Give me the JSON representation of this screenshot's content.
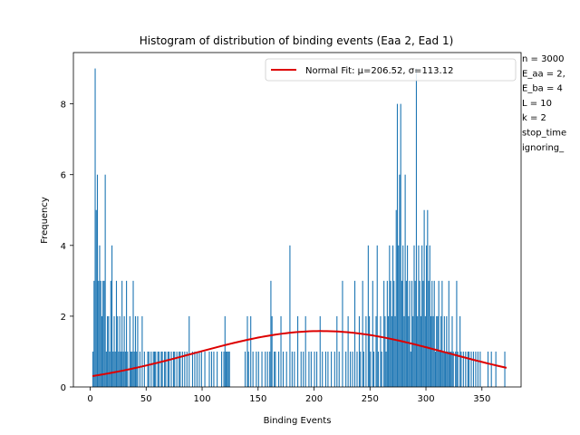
{
  "chart_data": {
    "type": "bar",
    "title": "Histogram of distribution of binding events (Eaa 2, Ead 1)",
    "xlabel": "Binding Events",
    "ylabel": "Frequency",
    "xlim": [
      -15,
      385
    ],
    "ylim": [
      0,
      9.45
    ],
    "xticks": [
      0,
      50,
      100,
      150,
      200,
      250,
      300,
      350
    ],
    "yticks": [
      0,
      2,
      4,
      6,
      8
    ],
    "bar_color": "#1f77b4",
    "bin_width": 1,
    "bins": [
      [
        2,
        1
      ],
      [
        3,
        3
      ],
      [
        4,
        9
      ],
      [
        5,
        5
      ],
      [
        6,
        6
      ],
      [
        7,
        3
      ],
      [
        8,
        4
      ],
      [
        9,
        3
      ],
      [
        10,
        2
      ],
      [
        11,
        3
      ],
      [
        12,
        3
      ],
      [
        13,
        6
      ],
      [
        14,
        1
      ],
      [
        15,
        2
      ],
      [
        16,
        2
      ],
      [
        17,
        1
      ],
      [
        18,
        3
      ],
      [
        19,
        4
      ],
      [
        20,
        1
      ],
      [
        21,
        2
      ],
      [
        22,
        1
      ],
      [
        23,
        3
      ],
      [
        24,
        2
      ],
      [
        25,
        1
      ],
      [
        26,
        2
      ],
      [
        27,
        1
      ],
      [
        28,
        3
      ],
      [
        29,
        1
      ],
      [
        30,
        2
      ],
      [
        31,
        1
      ],
      [
        32,
        3
      ],
      [
        33,
        1
      ],
      [
        35,
        2
      ],
      [
        36,
        1
      ],
      [
        37,
        1
      ],
      [
        38,
        3
      ],
      [
        39,
        1
      ],
      [
        40,
        2
      ],
      [
        41,
        1
      ],
      [
        42,
        2
      ],
      [
        44,
        1
      ],
      [
        46,
        2
      ],
      [
        48,
        1
      ],
      [
        51,
        1
      ],
      [
        52,
        1
      ],
      [
        54,
        1
      ],
      [
        56,
        1
      ],
      [
        57,
        1
      ],
      [
        58,
        1
      ],
      [
        60,
        1
      ],
      [
        61,
        1
      ],
      [
        63,
        1
      ],
      [
        64,
        1
      ],
      [
        66,
        1
      ],
      [
        67,
        1
      ],
      [
        69,
        1
      ],
      [
        70,
        1
      ],
      [
        72,
        1
      ],
      [
        74,
        1
      ],
      [
        75,
        1
      ],
      [
        77,
        1
      ],
      [
        79,
        1
      ],
      [
        80,
        1
      ],
      [
        82,
        1
      ],
      [
        84,
        1
      ],
      [
        86,
        1
      ],
      [
        88,
        2
      ],
      [
        91,
        1
      ],
      [
        93,
        1
      ],
      [
        95,
        1
      ],
      [
        97,
        1
      ],
      [
        99,
        1
      ],
      [
        102,
        1
      ],
      [
        106,
        1
      ],
      [
        108,
        1
      ],
      [
        110,
        1
      ],
      [
        113,
        1
      ],
      [
        117,
        1
      ],
      [
        119,
        1
      ],
      [
        120,
        2
      ],
      [
        121,
        1
      ],
      [
        122,
        1
      ],
      [
        123,
        1
      ],
      [
        124,
        1
      ],
      [
        138,
        1
      ],
      [
        140,
        2
      ],
      [
        141,
        1
      ],
      [
        143,
        2
      ],
      [
        145,
        1
      ],
      [
        148,
        1
      ],
      [
        150,
        1
      ],
      [
        153,
        1
      ],
      [
        156,
        1
      ],
      [
        158,
        1
      ],
      [
        160,
        1
      ],
      [
        161,
        3
      ],
      [
        162,
        2
      ],
      [
        164,
        1
      ],
      [
        165,
        1
      ],
      [
        168,
        1
      ],
      [
        170,
        2
      ],
      [
        172,
        1
      ],
      [
        175,
        1
      ],
      [
        178,
        4
      ],
      [
        180,
        1
      ],
      [
        182,
        1
      ],
      [
        185,
        2
      ],
      [
        188,
        1
      ],
      [
        190,
        1
      ],
      [
        192,
        2
      ],
      [
        195,
        1
      ],
      [
        197,
        1
      ],
      [
        200,
        1
      ],
      [
        202,
        1
      ],
      [
        205,
        2
      ],
      [
        207,
        1
      ],
      [
        210,
        1
      ],
      [
        212,
        1
      ],
      [
        215,
        1
      ],
      [
        218,
        1
      ],
      [
        220,
        2
      ],
      [
        222,
        1
      ],
      [
        225,
        3
      ],
      [
        228,
        1
      ],
      [
        230,
        2
      ],
      [
        232,
        1
      ],
      [
        234,
        1
      ],
      [
        236,
        3
      ],
      [
        238,
        1
      ],
      [
        240,
        2
      ],
      [
        241,
        1
      ],
      [
        243,
        3
      ],
      [
        244,
        1
      ],
      [
        246,
        2
      ],
      [
        248,
        4
      ],
      [
        249,
        2
      ],
      [
        250,
        1
      ],
      [
        252,
        3
      ],
      [
        253,
        1
      ],
      [
        255,
        2
      ],
      [
        256,
        4
      ],
      [
        257,
        1
      ],
      [
        259,
        2
      ],
      [
        260,
        1
      ],
      [
        262,
        3
      ],
      [
        263,
        2
      ],
      [
        264,
        1
      ],
      [
        265,
        3
      ],
      [
        266,
        2
      ],
      [
        267,
        4
      ],
      [
        268,
        3
      ],
      [
        269,
        2
      ],
      [
        270,
        4
      ],
      [
        271,
        3
      ],
      [
        272,
        2
      ],
      [
        273,
        5
      ],
      [
        274,
        8
      ],
      [
        275,
        4
      ],
      [
        276,
        6
      ],
      [
        277,
        8
      ],
      [
        278,
        3
      ],
      [
        279,
        4
      ],
      [
        280,
        2
      ],
      [
        281,
        6
      ],
      [
        282,
        3
      ],
      [
        283,
        4
      ],
      [
        284,
        2
      ],
      [
        285,
        3
      ],
      [
        286,
        1
      ],
      [
        287,
        3
      ],
      [
        288,
        2
      ],
      [
        289,
        4
      ],
      [
        290,
        3
      ],
      [
        291,
        9
      ],
      [
        292,
        2
      ],
      [
        293,
        4
      ],
      [
        294,
        3
      ],
      [
        295,
        2
      ],
      [
        296,
        4
      ],
      [
        297,
        3
      ],
      [
        298,
        5
      ],
      [
        299,
        2
      ],
      [
        300,
        4
      ],
      [
        301,
        5
      ],
      [
        302,
        3
      ],
      [
        303,
        4
      ],
      [
        304,
        2
      ],
      [
        305,
        3
      ],
      [
        306,
        2
      ],
      [
        307,
        3
      ],
      [
        308,
        1
      ],
      [
        309,
        2
      ],
      [
        310,
        2
      ],
      [
        311,
        3
      ],
      [
        312,
        1
      ],
      [
        313,
        2
      ],
      [
        314,
        3
      ],
      [
        315,
        1
      ],
      [
        316,
        2
      ],
      [
        317,
        1
      ],
      [
        318,
        2
      ],
      [
        319,
        1
      ],
      [
        320,
        3
      ],
      [
        321,
        1
      ],
      [
        322,
        1
      ],
      [
        323,
        2
      ],
      [
        324,
        1
      ],
      [
        326,
        1
      ],
      [
        327,
        3
      ],
      [
        328,
        1
      ],
      [
        330,
        2
      ],
      [
        331,
        1
      ],
      [
        333,
        1
      ],
      [
        335,
        1
      ],
      [
        337,
        1
      ],
      [
        338,
        1
      ],
      [
        340,
        1
      ],
      [
        342,
        1
      ],
      [
        344,
        1
      ],
      [
        346,
        1
      ],
      [
        348,
        1
      ],
      [
        355,
        1
      ],
      [
        358,
        1
      ],
      [
        362,
        1
      ],
      [
        370,
        1
      ]
    ],
    "fit": {
      "label": "Normal Fit: μ=206.52, σ=113.12",
      "mu": 206.52,
      "sigma": 113.12,
      "x_range": [
        2,
        372
      ],
      "peak": 1.58,
      "color": "#dd0000"
    },
    "legend": {
      "placement": "top-right"
    },
    "grid": false,
    "annotation_lines": [
      "n = 3000",
      "E_aa = 2,",
      "E_ba = 4",
      "L = 10",
      "k = 2",
      "stop_time",
      "ignoring_"
    ]
  }
}
